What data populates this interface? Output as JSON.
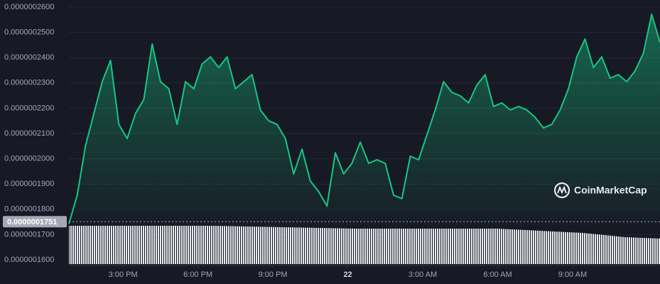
{
  "chart_data": {
    "type": "area",
    "watermark": "CoinMarketCap",
    "color": "#16c784",
    "grid": true,
    "x": [
      "12:50 PM",
      "1:10 PM",
      "1:30 PM",
      "1:50 PM",
      "2:10 PM",
      "2:30 PM",
      "2:50 PM",
      "3:10 PM",
      "3:30 PM",
      "3:50 PM",
      "4:10 PM",
      "4:30 PM",
      "4:50 PM",
      "5:10 PM",
      "5:30 PM",
      "5:50 PM",
      "6:10 PM",
      "6:30 PM",
      "6:50 PM",
      "7:10 PM",
      "7:30 PM",
      "7:50 PM",
      "8:10 PM",
      "8:30 PM",
      "8:50 PM",
      "9:10 PM",
      "9:30 PM",
      "9:50 PM",
      "10:10 PM",
      "10:30 PM",
      "10:50 PM",
      "11:10 PM",
      "11:30 PM",
      "11:50 PM",
      "12:10 AM",
      "12:30 AM",
      "12:50 AM",
      "1:10 AM",
      "1:30 AM",
      "1:50 AM",
      "2:10 AM",
      "2:30 AM",
      "2:50 AM",
      "3:10 AM",
      "3:30 AM",
      "3:50 AM",
      "4:10 AM",
      "4:30 AM",
      "4:50 AM",
      "5:10 AM",
      "5:30 AM",
      "5:50 AM",
      "6:10 AM",
      "6:30 AM",
      "6:50 AM",
      "7:10 AM",
      "7:30 AM",
      "7:50 AM",
      "8:10 AM",
      "8:30 AM",
      "8:50 AM",
      "9:10 AM",
      "9:30 AM",
      "9:50 AM",
      "10:10 AM",
      "10:30 AM",
      "10:50 AM",
      "11:10 AM",
      "11:30 AM",
      "11:50 AM",
      "12:10 PM",
      "12:30 PM"
    ],
    "values": [
      1.743e-07,
      1.856e-07,
      2.052e-07,
      2.179e-07,
      2.305e-07,
      2.389e-07,
      2.136e-07,
      2.08e-07,
      2.179e-07,
      2.235e-07,
      2.454e-07,
      2.305e-07,
      2.277e-07,
      2.136e-07,
      2.305e-07,
      2.277e-07,
      2.375e-07,
      2.403e-07,
      2.361e-07,
      2.403e-07,
      2.277e-07,
      2.305e-07,
      2.333e-07,
      2.193e-07,
      2.15e-07,
      2.136e-07,
      2.08e-07,
      1.94e-07,
      2.038e-07,
      1.912e-07,
      1.87e-07,
      1.813e-07,
      2.024e-07,
      1.94e-07,
      1.982e-07,
      2.066e-07,
      1.982e-07,
      1.996e-07,
      1.982e-07,
      1.856e-07,
      1.842e-07,
      2.01e-07,
      1.996e-07,
      2.094e-07,
      2.193e-07,
      2.305e-07,
      2.263e-07,
      2.249e-07,
      2.221e-07,
      2.291e-07,
      2.333e-07,
      2.207e-07,
      2.221e-07,
      2.193e-07,
      2.207e-07,
      2.193e-07,
      2.164e-07,
      2.122e-07,
      2.136e-07,
      2.193e-07,
      2.277e-07,
      2.403e-07,
      2.474e-07,
      2.361e-07,
      2.403e-07,
      2.319e-07,
      2.333e-07,
      2.305e-07,
      2.347e-07,
      2.417e-07,
      2.572e-07,
      2.46e-07
    ],
    "xlim": [
      "12:50 PM",
      "12:30 PM"
    ],
    "xticks": [
      "3:00 PM",
      "6:00 PM",
      "9:00 PM",
      {
        "value": "12:00 AM",
        "label": "22"
      },
      "3:00 AM",
      "6:00 AM",
      "9:00 AM"
    ],
    "ylim": [
      1.6e-07,
      2.6e-07
    ],
    "yticks": [
      {
        "value": 1.6e-07,
        "label": "0.0000001600"
      },
      {
        "value": 1.7e-07,
        "label": "0.0000001700"
      },
      {
        "value": 1.8e-07,
        "label": "0.0000001800"
      },
      {
        "value": 1.9e-07,
        "label": "0.0000001900"
      },
      {
        "value": 2e-07,
        "label": "0.0000002000"
      },
      {
        "value": 2.1e-07,
        "label": "0.0000002100"
      },
      {
        "value": 2.2e-07,
        "label": "0.0000002200"
      },
      {
        "value": 2.3e-07,
        "label": "0.0000002300"
      },
      {
        "value": 2.4e-07,
        "label": "0.0000002400"
      },
      {
        "value": 2.5e-07,
        "label": "0.0000002500"
      },
      {
        "value": 2.6e-07,
        "label": "0.0000002600"
      }
    ],
    "current_price": {
      "value": 1.751e-07,
      "label": "0.0000001751"
    }
  }
}
